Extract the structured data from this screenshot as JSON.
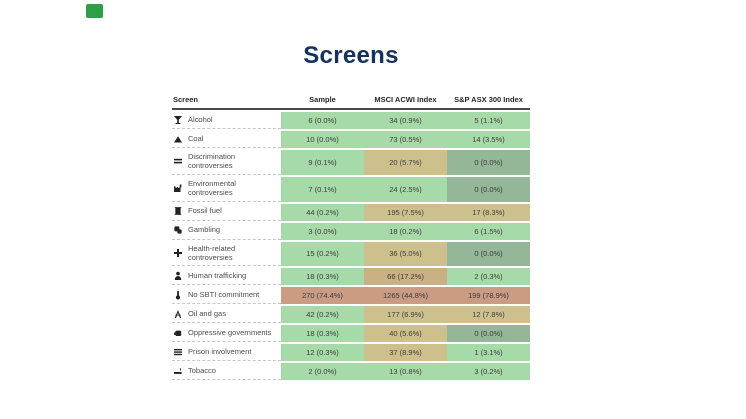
{
  "logo": {
    "color": "#2f9e49"
  },
  "title": "Screens",
  "title_color": "#16325c",
  "palette": {
    "green": "#a7daa9",
    "tan": "#cec08d",
    "grayGreen": "#93b797",
    "orangeTan": "#cab082",
    "salmon": "#cb9c83"
  },
  "chart_data": {
    "type": "table",
    "title": "Screens",
    "columns": [
      "Screen",
      "Sample",
      "MSCI ACWI Index",
      "S&P ASX 300 Index"
    ],
    "legend_note": "cell background tone encodes exposure level: green = low, tan = medium, salmon = high, grayGreen = zero",
    "rows": [
      {
        "screen": "Alcohol",
        "icon": "martini-glass-icon",
        "cells": [
          {
            "value": "6 (0.0%)",
            "tone": "green"
          },
          {
            "value": "34 (0.9%)",
            "tone": "green"
          },
          {
            "value": "5 (1.1%)",
            "tone": "green"
          }
        ]
      },
      {
        "screen": "Coal",
        "icon": "coal-pile-icon",
        "cells": [
          {
            "value": "10 (0.0%)",
            "tone": "green"
          },
          {
            "value": "73 (0.5%)",
            "tone": "green"
          },
          {
            "value": "14 (3.5%)",
            "tone": "green"
          }
        ]
      },
      {
        "screen": "Discrimination controversies",
        "icon": "unequal-bars-icon",
        "cells": [
          {
            "value": "9 (0.1%)",
            "tone": "green"
          },
          {
            "value": "20 (5.7%)",
            "tone": "tan"
          },
          {
            "value": "0 (0.0%)",
            "tone": "grayGreen"
          }
        ]
      },
      {
        "screen": "Environmental controversies",
        "icon": "factory-icon",
        "cells": [
          {
            "value": "7 (0.1%)",
            "tone": "green"
          },
          {
            "value": "24 (2.5%)",
            "tone": "green"
          },
          {
            "value": "0 (0.0%)",
            "tone": "grayGreen"
          }
        ]
      },
      {
        "screen": "Fossil fuel",
        "icon": "oil-barrel-icon",
        "cells": [
          {
            "value": "44 (0.2%)",
            "tone": "green"
          },
          {
            "value": "195 (7.5%)",
            "tone": "tan"
          },
          {
            "value": "17 (8.3%)",
            "tone": "tan"
          }
        ]
      },
      {
        "screen": "Gambling",
        "icon": "dice-icon",
        "cells": [
          {
            "value": "3 (0.0%)",
            "tone": "green"
          },
          {
            "value": "18 (0.2%)",
            "tone": "green"
          },
          {
            "value": "6 (1.5%)",
            "tone": "green"
          }
        ]
      },
      {
        "screen": "Health-related controversies",
        "icon": "pills-icon",
        "cells": [
          {
            "value": "15 (0.2%)",
            "tone": "green"
          },
          {
            "value": "36 (5.0%)",
            "tone": "tan"
          },
          {
            "value": "0 (0.0%)",
            "tone": "grayGreen"
          }
        ]
      },
      {
        "screen": "Human trafficking",
        "icon": "person-icon",
        "cells": [
          {
            "value": "18 (0.3%)",
            "tone": "green"
          },
          {
            "value": "66 (17.2%)",
            "tone": "orangeTan"
          },
          {
            "value": "2 (0.3%)",
            "tone": "green"
          }
        ]
      },
      {
        "screen": "No SBTI commitment",
        "icon": "thermometer-icon",
        "cells": [
          {
            "value": "270 (74.4%)",
            "tone": "salmon"
          },
          {
            "value": "1265 (44.8%)",
            "tone": "salmon"
          },
          {
            "value": "199 (78.9%)",
            "tone": "salmon"
          }
        ]
      },
      {
        "screen": "Oil and gas",
        "icon": "oil-derrick-icon",
        "cells": [
          {
            "value": "42 (0.2%)",
            "tone": "green"
          },
          {
            "value": "177 (6.9%)",
            "tone": "tan"
          },
          {
            "value": "12 (7.8%)",
            "tone": "tan"
          }
        ]
      },
      {
        "screen": "Oppressive governments",
        "icon": "fist-icon",
        "cells": [
          {
            "value": "18 (0.3%)",
            "tone": "green"
          },
          {
            "value": "40 (5.6%)",
            "tone": "tan"
          },
          {
            "value": "0 (0.0%)",
            "tone": "grayGreen"
          }
        ]
      },
      {
        "screen": "Prison involvement",
        "icon": "prison-bars-icon",
        "cells": [
          {
            "value": "12 (0.3%)",
            "tone": "green"
          },
          {
            "value": "37 (8.9%)",
            "tone": "tan"
          },
          {
            "value": "1 (3.1%)",
            "tone": "green"
          }
        ]
      },
      {
        "screen": "Tobacco",
        "icon": "cigarette-icon",
        "cells": [
          {
            "value": "2 (0.0%)",
            "tone": "green"
          },
          {
            "value": "13 (0.8%)",
            "tone": "green"
          },
          {
            "value": "3 (0.2%)",
            "tone": "green"
          }
        ]
      }
    ]
  }
}
